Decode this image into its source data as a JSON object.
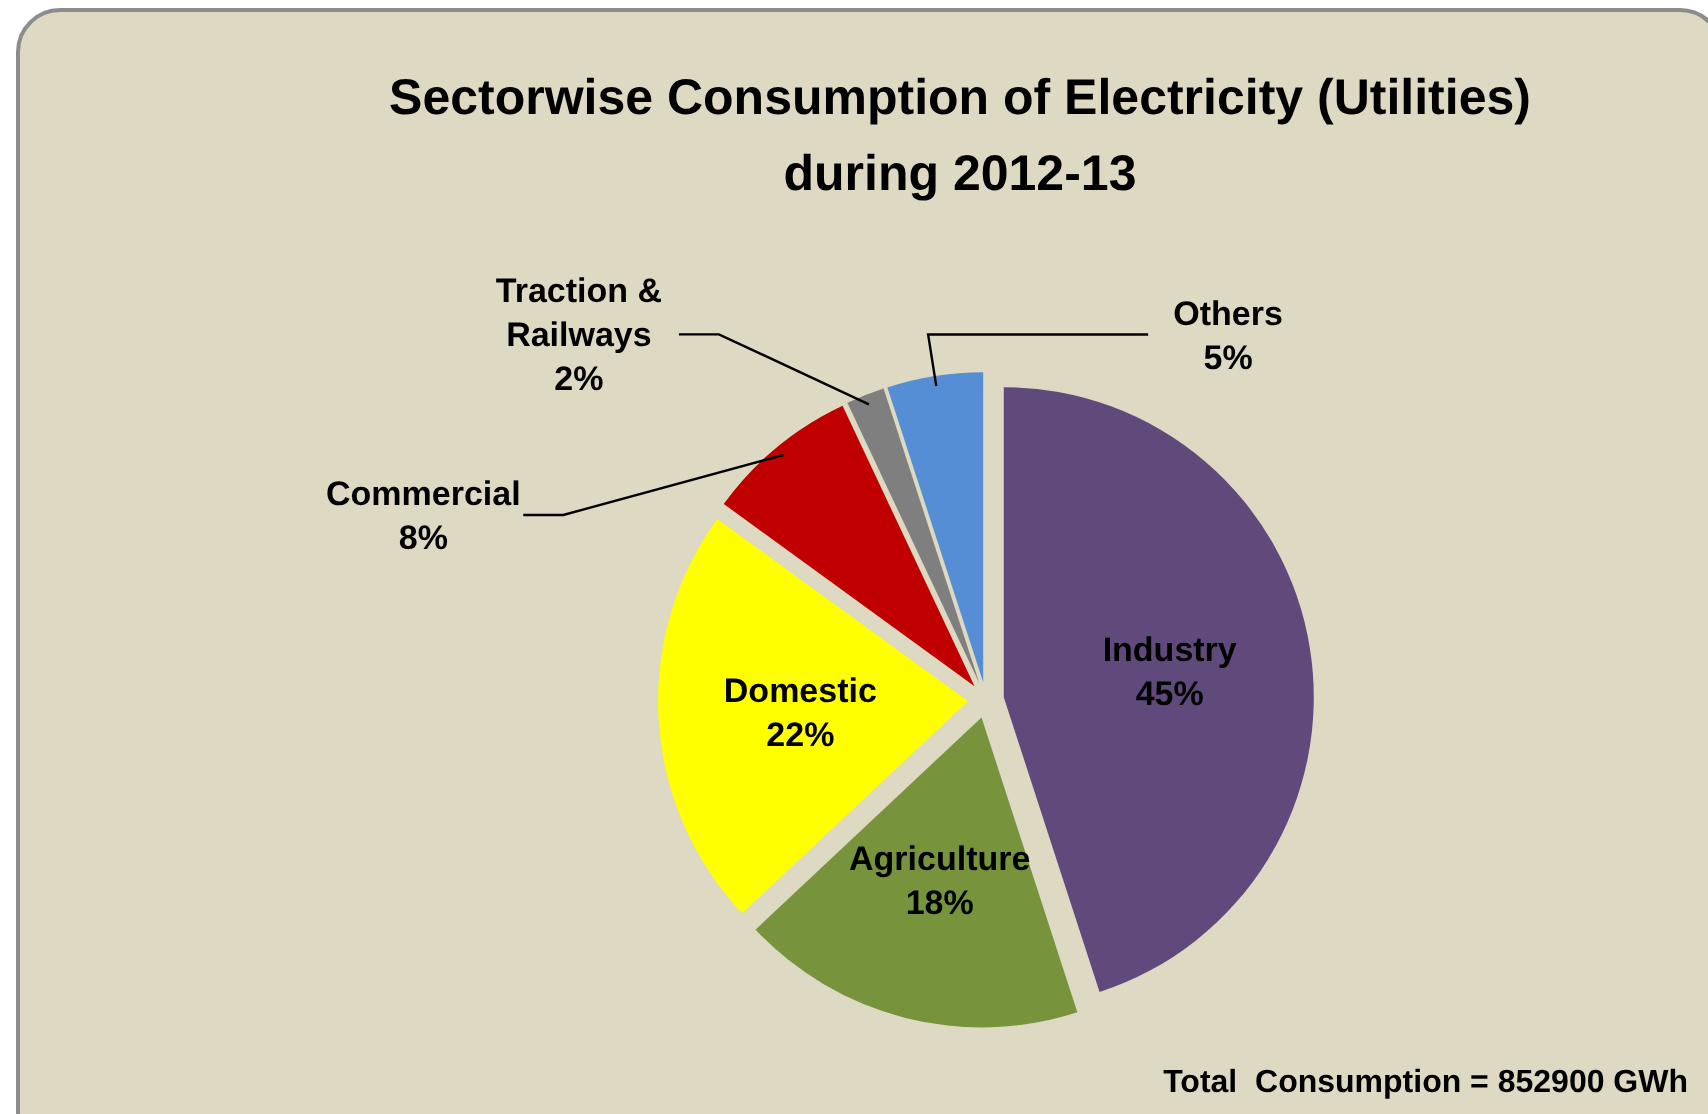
{
  "chart_data": {
    "type": "pie",
    "title": "Sectorwise Consumption of Electricity (Utilities) during 2012-13",
    "categories": [
      "Industry",
      "Agriculture",
      "Domestic",
      "Commercial",
      "Traction & Railways",
      "Others"
    ],
    "values": [
      45,
      18,
      22,
      8,
      2,
      5
    ],
    "colors": [
      "#604a7b",
      "#77933c",
      "#ffff00",
      "#c00000",
      "#7f7f7f",
      "#558ed5"
    ],
    "value_labels": [
      "45%",
      "18%",
      "22%",
      "8%",
      "2%",
      "5%"
    ],
    "data_labels": true,
    "annotations": [
      "Total  Consumption = 852900 GWh"
    ]
  }
}
